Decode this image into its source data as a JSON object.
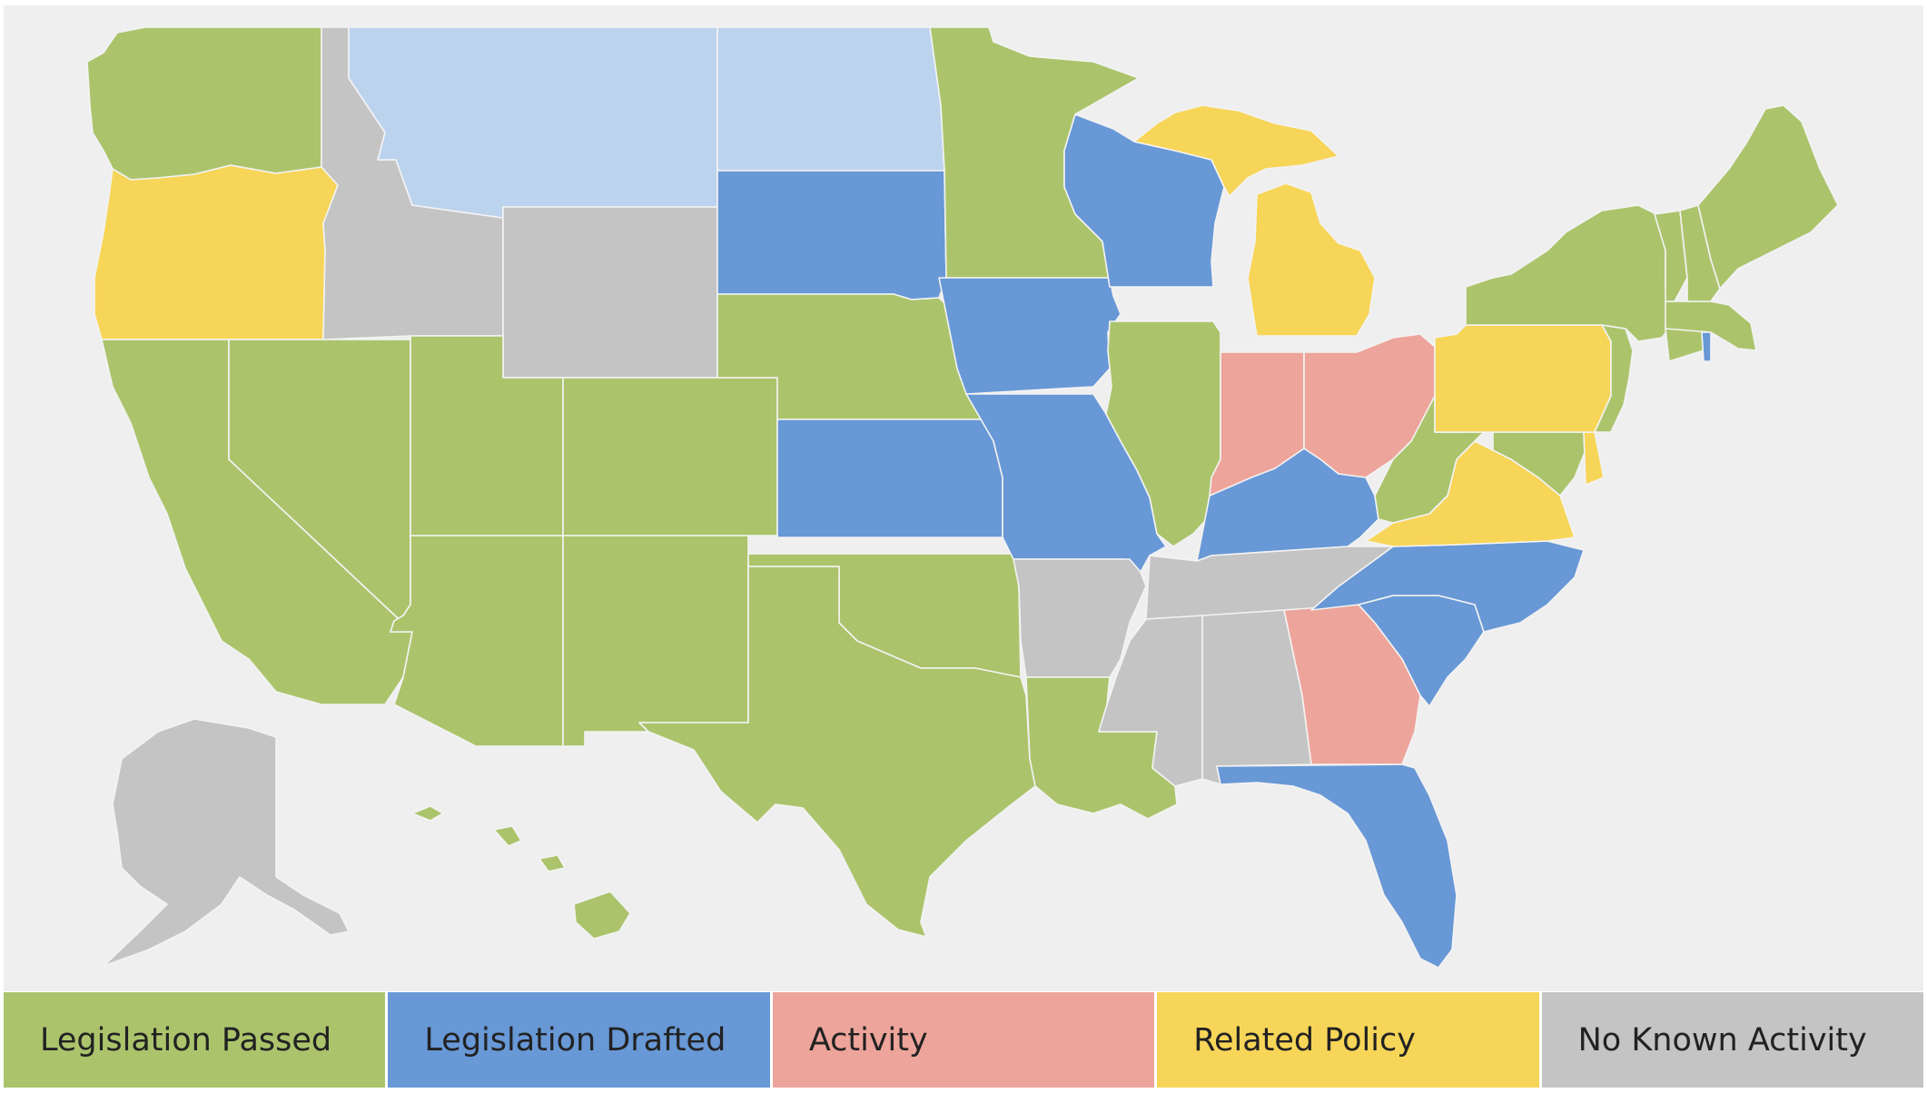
{
  "colors": {
    "passed": "#abc46c",
    "drafted": "#6898d6",
    "activity": "#eda49a",
    "policy": "#f7d558",
    "none": "#c4c4c4",
    "interest": "#bcd3ee",
    "background": "#efefef"
  },
  "legend": [
    {
      "label": "Legislation Passed",
      "color": "#abc46c"
    },
    {
      "label": "Legislation Drafted",
      "color": "#6898d6"
    },
    {
      "label": "Activity",
      "color": "#eda49a"
    },
    {
      "label": "Related Policy",
      "color": "#f7d558"
    },
    {
      "label": "No Known Activity",
      "color": "#c4c4c4"
    }
  ],
  "states": [
    {
      "name": "Washington",
      "status": "passed"
    },
    {
      "name": "Oregon",
      "status": "policy"
    },
    {
      "name": "California",
      "status": "passed"
    },
    {
      "name": "Nevada",
      "status": "passed"
    },
    {
      "name": "Idaho",
      "status": "none"
    },
    {
      "name": "Montana",
      "status": "interest"
    },
    {
      "name": "Wyoming",
      "status": "none"
    },
    {
      "name": "Utah",
      "status": "passed"
    },
    {
      "name": "Arizona",
      "status": "passed"
    },
    {
      "name": "Colorado",
      "status": "passed"
    },
    {
      "name": "New Mexico",
      "status": "passed"
    },
    {
      "name": "North Dakota",
      "status": "interest"
    },
    {
      "name": "South Dakota",
      "status": "drafted"
    },
    {
      "name": "Nebraska",
      "status": "passed"
    },
    {
      "name": "Kansas",
      "status": "drafted"
    },
    {
      "name": "Oklahoma",
      "status": "passed"
    },
    {
      "name": "Texas",
      "status": "passed"
    },
    {
      "name": "Minnesota",
      "status": "passed"
    },
    {
      "name": "Iowa",
      "status": "drafted"
    },
    {
      "name": "Missouri",
      "status": "drafted"
    },
    {
      "name": "Arkansas",
      "status": "none"
    },
    {
      "name": "Louisiana",
      "status": "passed"
    },
    {
      "name": "Wisconsin",
      "status": "drafted"
    },
    {
      "name": "Illinois",
      "status": "passed"
    },
    {
      "name": "Michigan",
      "status": "policy"
    },
    {
      "name": "Indiana",
      "status": "activity"
    },
    {
      "name": "Ohio",
      "status": "activity"
    },
    {
      "name": "Kentucky",
      "status": "drafted"
    },
    {
      "name": "Tennessee",
      "status": "none"
    },
    {
      "name": "Mississippi",
      "status": "none"
    },
    {
      "name": "Alabama",
      "status": "none"
    },
    {
      "name": "Georgia",
      "status": "activity"
    },
    {
      "name": "Florida",
      "status": "drafted"
    },
    {
      "name": "South Carolina",
      "status": "drafted"
    },
    {
      "name": "North Carolina",
      "status": "drafted"
    },
    {
      "name": "Virginia",
      "status": "policy"
    },
    {
      "name": "West Virginia",
      "status": "passed"
    },
    {
      "name": "Maryland",
      "status": "passed"
    },
    {
      "name": "Delaware",
      "status": "policy"
    },
    {
      "name": "Pennsylvania",
      "status": "policy"
    },
    {
      "name": "New Jersey",
      "status": "passed"
    },
    {
      "name": "New York",
      "status": "passed"
    },
    {
      "name": "Connecticut",
      "status": "passed"
    },
    {
      "name": "Rhode Island",
      "status": "drafted"
    },
    {
      "name": "Massachusetts",
      "status": "passed"
    },
    {
      "name": "Vermont",
      "status": "passed"
    },
    {
      "name": "New Hampshire",
      "status": "passed"
    },
    {
      "name": "Maine",
      "status": "passed"
    },
    {
      "name": "Alaska",
      "status": "none"
    },
    {
      "name": "Hawaii",
      "status": "passed"
    }
  ]
}
